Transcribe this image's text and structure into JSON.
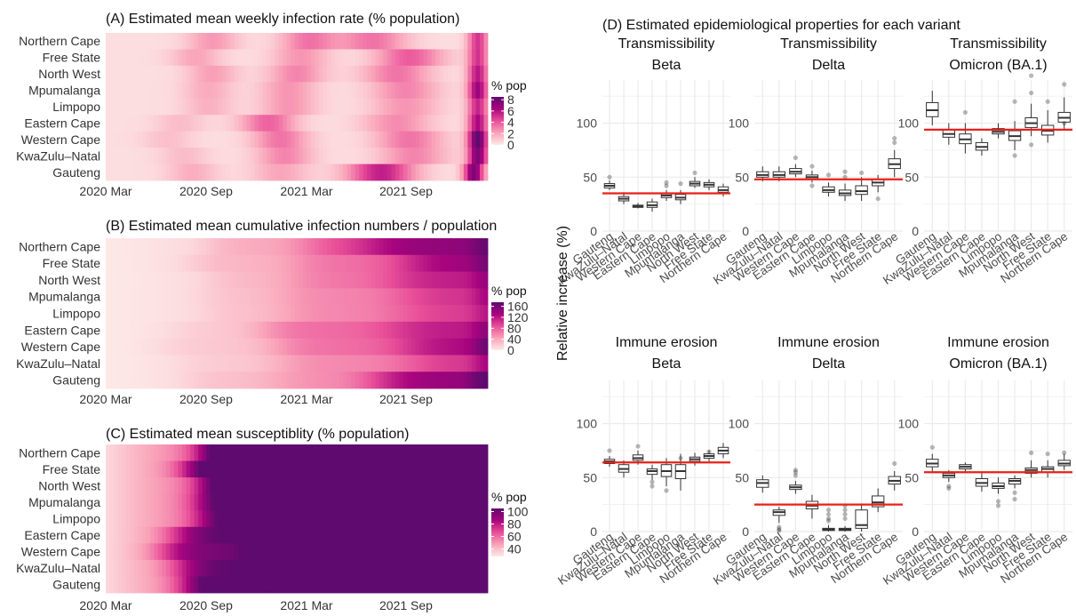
{
  "chart_data": [
    {
      "type": "heatmap",
      "title": "(A) Estimated mean weekly infection rate (% population)",
      "rows": [
        "Northern Cape",
        "Free State",
        "North West",
        "Mpumalanga",
        "Limpopo",
        "Eastern Cape",
        "Western Cape",
        "KwaZulu–Natal",
        "Gauteng"
      ],
      "x_ticks": [
        "2020 Mar",
        "2020 Sep",
        "2021 Mar",
        "2021 Sep"
      ],
      "legend": {
        "title": "% pop",
        "ticks": [
          8,
          6,
          4,
          2,
          0
        ],
        "range": [
          0,
          8.5
        ],
        "colors": [
          "#fde9e7",
          "#f9a3b9",
          "#e94f98",
          "#a9047f",
          "#5e0a6e"
        ]
      },
      "waves": [
        {
          "name": "first",
          "peaks": [
            0.24,
            0.2,
            0.22,
            0.18,
            0.16,
            0.12,
            0.11,
            0.12,
            0.17
          ],
          "peak_week": [
            26,
            22,
            26,
            25,
            25,
            18,
            15,
            19,
            21
          ],
          "spread": 4.5
        },
        {
          "name": "second",
          "peaks": [
            0.35,
            0.25,
            0.3,
            0.25,
            0.25,
            0.4,
            0.35,
            0.3,
            0.2
          ],
          "peak_week": [
            50,
            48,
            47,
            45,
            45,
            40,
            43,
            44,
            43
          ],
          "spread": 5
        },
        {
          "name": "third",
          "peaks": [
            0.35,
            0.42,
            0.35,
            0.3,
            0.25,
            0.28,
            0.35,
            0.3,
            0.62
          ],
          "peak_week": [
            66,
            75,
            72,
            74,
            74,
            72,
            75,
            76,
            68
          ],
          "spread": 6
        },
        {
          "name": "omicron",
          "peaks": [
            0.55,
            0.55,
            0.65,
            0.75,
            0.6,
            0.7,
            0.95,
            0.85,
            0.85
          ],
          "peak_week": [
            92,
            92,
            92,
            92,
            92,
            92,
            92,
            92,
            91
          ],
          "spread": 1.8
        }
      ]
    },
    {
      "type": "heatmap",
      "title": "(B) Estimated mean cumulative infection numbers / population",
      "rows": [
        "Northern Cape",
        "Free State",
        "North West",
        "Mpumalanga",
        "Limpopo",
        "Eastern Cape",
        "Western Cape",
        "KwaZulu–Natal",
        "Gauteng"
      ],
      "x_ticks": [
        "2020 Mar",
        "2020 Sep",
        "2021 Mar",
        "2021 Sep"
      ],
      "legend": {
        "title": "% pop",
        "ticks": [
          160,
          120,
          80,
          40,
          0
        ],
        "range": [
          0,
          175
        ],
        "colors": [
          "#fde9e7",
          "#f9a3b9",
          "#e94f98",
          "#a9047f",
          "#5e0a6e"
        ]
      },
      "final_values": [
        170,
        160,
        140,
        130,
        120,
        145,
        165,
        130,
        175
      ]
    },
    {
      "type": "heatmap",
      "title": "(C) Estimated mean susceptiblity (% population)",
      "rows": [
        "Northern Cape",
        "Free State",
        "North West",
        "Mpumalanga",
        "Limpopo",
        "Eastern Cape",
        "Western Cape",
        "KwaZulu–Natal",
        "Gauteng"
      ],
      "x_ticks": [
        "2020 Mar",
        "2020 Sep",
        "2021 Mar",
        "2021 Sep"
      ],
      "legend": {
        "title": "% pop",
        "ticks": [
          100,
          80,
          60,
          40
        ],
        "range": [
          28,
          105
        ],
        "colors": [
          "#fde9e7",
          "#f9a3b9",
          "#e94f98",
          "#a9047f",
          "#5e0a6e"
        ]
      }
    },
    {
      "type": "box",
      "title": "(D) Estimated epidemiological properties for each variant",
      "ylabel": "Relative increase (%)",
      "ylim": [
        0,
        140
      ],
      "yticks": [
        0,
        50,
        100
      ],
      "categories": [
        "Gauteng",
        "KwaZulu–Natal",
        "Western Cape",
        "Eastern Cape",
        "Limpopo",
        "Mpumalanga",
        "North West",
        "Free State",
        "Northern Cape"
      ],
      "panels": [
        {
          "title1": "Transmissibility",
          "title2": "Beta",
          "overall": 35,
          "medians": [
            42,
            30,
            23,
            24,
            33,
            31,
            44,
            43,
            38
          ],
          "q1": [
            40,
            28,
            22,
            22,
            31,
            29,
            42,
            41,
            36
          ],
          "q3": [
            44,
            32,
            24,
            27,
            35,
            34,
            46,
            45,
            41
          ],
          "lo": [
            38,
            25,
            21,
            18,
            28,
            25,
            40,
            38,
            32
          ],
          "hi": [
            47,
            36,
            26,
            30,
            38,
            38,
            50,
            48,
            44
          ],
          "outliers": [
            [
              50
            ],
            [],
            [],
            [],
            [
              45,
              42
            ],
            [
              44
            ],
            [
              54
            ],
            [],
            []
          ]
        },
        {
          "title1": "Transmissibility",
          "title2": "Delta",
          "overall": 48,
          "medians": [
            52,
            52,
            55,
            50,
            38,
            35,
            37,
            45,
            62
          ],
          "q1": [
            50,
            50,
            53,
            48,
            36,
            33,
            34,
            42,
            58
          ],
          "q3": [
            55,
            55,
            58,
            52,
            41,
            38,
            42,
            48,
            67
          ],
          "lo": [
            46,
            46,
            50,
            45,
            32,
            28,
            28,
            36,
            50
          ],
          "hi": [
            60,
            60,
            62,
            56,
            45,
            44,
            50,
            52,
            75
          ],
          "outliers": [
            [],
            [],
            [
              68
            ],
            [
              60,
              42
            ],
            [
              52
            ],
            [
              55,
              50
            ],
            [
              54
            ],
            [
              30
            ],
            [
              86,
              82
            ]
          ]
        },
        {
          "title1": "Transmissibility",
          "title2": "Omicron (BA.1)",
          "overall": 94,
          "medians": [
            112,
            90,
            85,
            78,
            92,
            88,
            100,
            93,
            105
          ],
          "q1": [
            106,
            87,
            81,
            75,
            90,
            84,
            96,
            89,
            101
          ],
          "q3": [
            119,
            94,
            90,
            82,
            95,
            93,
            105,
            98,
            110
          ],
          "lo": [
            98,
            80,
            72,
            70,
            86,
            75,
            88,
            82,
            94
          ],
          "hi": [
            130,
            100,
            100,
            86,
            100,
            102,
            118,
            112,
            124
          ],
          "outliers": [
            [],
            [],
            [
              110
            ],
            [],
            [],
            [
              120,
              70
            ],
            [
              144,
              128,
              80
            ],
            [
              120
            ],
            [
              136,
              100
            ]
          ]
        },
        {
          "title1": "Immune erosion",
          "title2": "Beta",
          "overall": 64,
          "medians": [
            65,
            58,
            68,
            56,
            56,
            56,
            67,
            70,
            75
          ],
          "q1": [
            63,
            55,
            66,
            53,
            51,
            49,
            65,
            68,
            72
          ],
          "q3": [
            67,
            62,
            71,
            58,
            62,
            62,
            69,
            72,
            78
          ],
          "lo": [
            60,
            50,
            62,
            48,
            42,
            38,
            61,
            65,
            68
          ],
          "hi": [
            70,
            66,
            75,
            62,
            68,
            72,
            73,
            75,
            82
          ],
          "outliers": [
            [
              75
            ],
            [],
            [
              79
            ],
            [
              46,
              42
            ],
            [
              38
            ],
            [
              68
            ],
            [],
            [
              74
            ],
            []
          ]
        },
        {
          "title1": "Immune erosion",
          "title2": "Delta",
          "overall": 25,
          "medians": [
            45,
            18,
            41,
            24,
            2,
            2,
            6,
            27,
            47
          ],
          "q1": [
            41,
            15,
            39,
            21,
            1,
            1,
            3,
            23,
            44
          ],
          "q3": [
            48,
            20,
            43,
            28,
            3,
            3,
            20,
            33,
            51
          ],
          "lo": [
            36,
            8,
            35,
            12,
            0,
            0,
            0,
            18,
            38
          ],
          "hi": [
            52,
            23,
            47,
            34,
            6,
            5,
            26,
            40,
            56
          ],
          "outliers": [
            [],
            [
              4,
              2,
              1
            ],
            [
              57,
              55,
              52
            ],
            [],
            [
              20,
              16,
              12,
              10
            ],
            [
              24,
              20,
              16,
              12
            ],
            [],
            [],
            [
              63
            ]
          ]
        },
        {
          "title1": "Immune erosion",
          "title2": "Omicron (BA.1)",
          "overall": 55,
          "medians": [
            63,
            52,
            60,
            45,
            42,
            47,
            57,
            58,
            63
          ],
          "q1": [
            60,
            50,
            58,
            42,
            40,
            44,
            54,
            55,
            61
          ],
          "q3": [
            67,
            54,
            62,
            49,
            45,
            49,
            59,
            60,
            66
          ],
          "lo": [
            55,
            46,
            55,
            37,
            35,
            40,
            50,
            50,
            57
          ],
          "hi": [
            72,
            57,
            64,
            54,
            50,
            52,
            66,
            66,
            72
          ],
          "outliers": [
            [
              78
            ],
            [
              42,
              40
            ],
            [],
            [],
            [
              28,
              24
            ],
            [
              36,
              30
            ],
            [
              73
            ],
            [
              72
            ],
            [
              73
            ]
          ]
        }
      ]
    }
  ]
}
